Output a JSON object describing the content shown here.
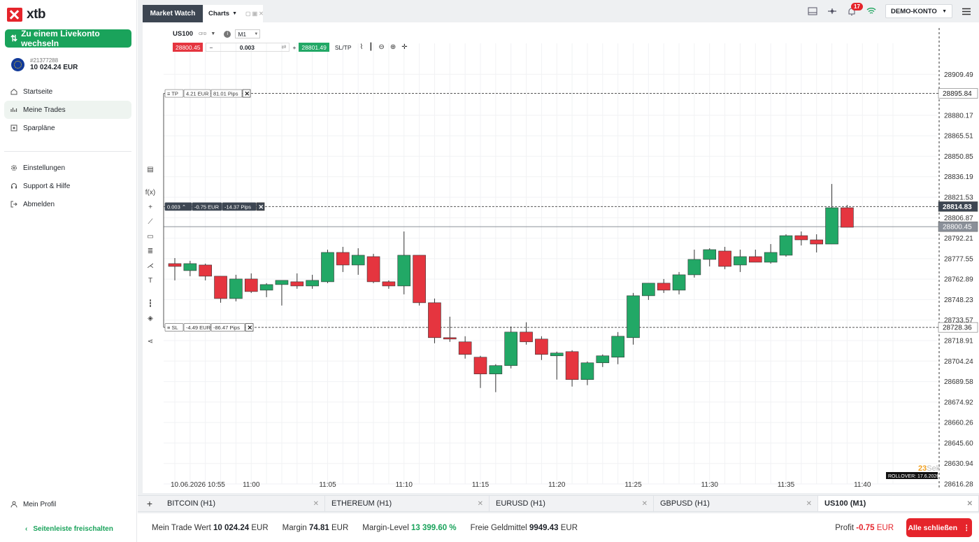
{
  "brand": {
    "logo_text": "xtb"
  },
  "sidebar": {
    "live_button": "Zu einem Livekonto wechseln",
    "account_id": "#21377288",
    "balance": "10 024.24 EUR",
    "nav": [
      {
        "label": "Startseite",
        "icon": "home-icon"
      },
      {
        "label": "Meine Trades",
        "icon": "trades-icon"
      },
      {
        "label": "Sparpläne",
        "icon": "savings-icon"
      }
    ],
    "nav2": [
      {
        "label": "Einstellungen",
        "icon": "gear-icon"
      },
      {
        "label": "Support & Hilfe",
        "icon": "headset-icon"
      },
      {
        "label": "Abmelden",
        "icon": "logout-icon"
      }
    ],
    "profile": "Mein Profil",
    "unlock": "Seitenleiste freischalten"
  },
  "topbar": {
    "market_watch": "Market Watch",
    "charts_tab": "Charts",
    "notifications": "17",
    "account_type": "DEMO-KONTO"
  },
  "chart_toolbar": {
    "symbol": "US100",
    "symbol_type": "CFD",
    "timeframe": "M1",
    "sell_price": "28800.45",
    "volume": "0.003",
    "buy_price": "28801.49",
    "sltp": "SL/TP"
  },
  "orders": {
    "tp": {
      "label": "TP",
      "value": "4.21",
      "currency": "EUR",
      "pips": "81.01",
      "pips_unit": "Pips"
    },
    "position": {
      "volume": "0.003",
      "value": "-0.75",
      "currency": "EUR",
      "pips": "-14.37",
      "pips_unit": "Pips"
    },
    "sl": {
      "label": "SL",
      "value": "-4.49",
      "currency": "EUR",
      "pips": "-86.47",
      "pips_unit": "Pips"
    }
  },
  "chart_overlay": {
    "countdown": "23",
    "countdown_unit": "Sek",
    "rollover": "ROLLOVER: 17.6.2026"
  },
  "chart_data": {
    "type": "candlestick",
    "symbol": "US100",
    "timeframe": "M1",
    "y_ticks": [
      28909.49,
      28880.17,
      28865.51,
      28850.85,
      28836.19,
      28821.53,
      28806.87,
      28792.21,
      28777.55,
      28762.89,
      28748.23,
      28733.57,
      28718.91,
      28704.24,
      28689.58,
      28674.92,
      28660.26,
      28645.6,
      28630.94,
      28616.28
    ],
    "ylim": [
      28616.28,
      28924.15
    ],
    "price_labels": {
      "tp": 28895.84,
      "position": 28814.83,
      "bid": 28800.45,
      "sl": 28728.36
    },
    "x_labels": [
      "10.06.2026 10:55",
      "11:00",
      "11:05",
      "11:10",
      "11:15",
      "11:20",
      "11:25",
      "11:30",
      "11:35",
      "11:40"
    ],
    "candles": [
      {
        "o": 28774,
        "h": 28778,
        "l": 28762,
        "c": 28772
      },
      {
        "o": 28769,
        "h": 28776,
        "l": 28765,
        "c": 28774
      },
      {
        "o": 28773,
        "h": 28774,
        "l": 28762,
        "c": 28765
      },
      {
        "o": 28765,
        "h": 28765,
        "l": 28746,
        "c": 28749
      },
      {
        "o": 28749,
        "h": 28766,
        "l": 28747,
        "c": 28763
      },
      {
        "o": 28763,
        "h": 28767,
        "l": 28753,
        "c": 28754
      },
      {
        "o": 28755,
        "h": 28760,
        "l": 28750,
        "c": 28759
      },
      {
        "o": 28759,
        "h": 28762,
        "l": 28744,
        "c": 28762
      },
      {
        "o": 28761,
        "h": 28767,
        "l": 28756,
        "c": 28758
      },
      {
        "o": 28758,
        "h": 28766,
        "l": 28756,
        "c": 28762
      },
      {
        "o": 28761,
        "h": 28784,
        "l": 28760,
        "c": 28782
      },
      {
        "o": 28782,
        "h": 28786,
        "l": 28768,
        "c": 28773
      },
      {
        "o": 28773,
        "h": 28785,
        "l": 28766,
        "c": 28780
      },
      {
        "o": 28779,
        "h": 28781,
        "l": 28760,
        "c": 28761
      },
      {
        "o": 28761,
        "h": 28762,
        "l": 28756,
        "c": 28758
      },
      {
        "o": 28758,
        "h": 28797,
        "l": 28752,
        "c": 28780
      },
      {
        "o": 28780,
        "h": 28780,
        "l": 28744,
        "c": 28746
      },
      {
        "o": 28746,
        "h": 28749,
        "l": 28717,
        "c": 28721
      },
      {
        "o": 28721,
        "h": 28736,
        "l": 28718,
        "c": 28720
      },
      {
        "o": 28718,
        "h": 28722,
        "l": 28706,
        "c": 28709
      },
      {
        "o": 28707,
        "h": 28708,
        "l": 28685,
        "c": 28695
      },
      {
        "o": 28695,
        "h": 28702,
        "l": 28682,
        "c": 28701
      },
      {
        "o": 28701,
        "h": 28729,
        "l": 28699,
        "c": 28725
      },
      {
        "o": 28725,
        "h": 28732,
        "l": 28716,
        "c": 28718
      },
      {
        "o": 28720,
        "h": 28722,
        "l": 28705,
        "c": 28709
      },
      {
        "o": 28708,
        "h": 28711,
        "l": 28691,
        "c": 28710
      },
      {
        "o": 28711,
        "h": 28712,
        "l": 28686,
        "c": 28691
      },
      {
        "o": 28691,
        "h": 28704,
        "l": 28687,
        "c": 28703
      },
      {
        "o": 28703,
        "h": 28709,
        "l": 28700,
        "c": 28708
      },
      {
        "o": 28707,
        "h": 28725,
        "l": 28702,
        "c": 28722
      },
      {
        "o": 28721,
        "h": 28753,
        "l": 28716,
        "c": 28751
      },
      {
        "o": 28751,
        "h": 28760,
        "l": 28748,
        "c": 28760
      },
      {
        "o": 28760,
        "h": 28763,
        "l": 28753,
        "c": 28755
      },
      {
        "o": 28755,
        "h": 28768,
        "l": 28752,
        "c": 28766
      },
      {
        "o": 28766,
        "h": 28784,
        "l": 28764,
        "c": 28777
      },
      {
        "o": 28777,
        "h": 28785,
        "l": 28772,
        "c": 28784
      },
      {
        "o": 28783,
        "h": 28786,
        "l": 28770,
        "c": 28772
      },
      {
        "o": 28773,
        "h": 28784,
        "l": 28768,
        "c": 28779
      },
      {
        "o": 28779,
        "h": 28784,
        "l": 28776,
        "c": 28775
      },
      {
        "o": 28775,
        "h": 28788,
        "l": 28774,
        "c": 28782
      },
      {
        "o": 28780,
        "h": 28795,
        "l": 28779,
        "c": 28794
      },
      {
        "o": 28794,
        "h": 28797,
        "l": 28787,
        "c": 28791
      },
      {
        "o": 28791,
        "h": 28795,
        "l": 28782,
        "c": 28788
      },
      {
        "o": 28788,
        "h": 28831,
        "l": 28788,
        "c": 28814
      },
      {
        "o": 28814,
        "h": 28816,
        "l": 28800,
        "c": 28800
      }
    ]
  },
  "bottom_tabs": [
    {
      "label": "BITCOIN (H1)",
      "active": false
    },
    {
      "label": "ETHEREUM (H1)",
      "active": false
    },
    {
      "label": "EURUSD (H1)",
      "active": false
    },
    {
      "label": "GBPUSD (H1)",
      "active": false
    },
    {
      "label": "US100 (M1)",
      "active": true
    }
  ],
  "status": {
    "trade_value_label": "Mein Trade Wert",
    "trade_value": "10 024.24",
    "trade_value_cur": "EUR",
    "margin_label": "Margin",
    "margin": "74.81",
    "margin_cur": "EUR",
    "margin_level_label": "Margin-Level",
    "margin_level": "13 399.60 %",
    "free_margin_label": "Freie Geldmittel",
    "free_margin": "9949.43",
    "free_margin_cur": "EUR",
    "profit_label": "Profit",
    "profit": "-0.75",
    "profit_cur": "EUR",
    "close_all": "Alle schließen"
  },
  "colors": {
    "up": "#22a866",
    "down": "#e5353f",
    "accent": "#1aa35b"
  }
}
